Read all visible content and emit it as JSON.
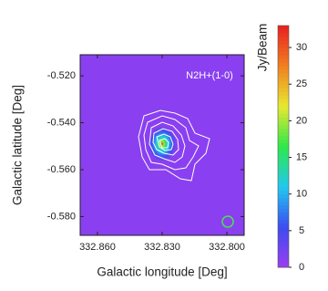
{
  "chart_data": {
    "type": "heatmap",
    "annotation": "N2H+(1-0)",
    "xlabel": "Galactic longitude [Deg]",
    "ylabel": "Galactic latitude [Deg]",
    "colorbar_label": "Jy/Beam",
    "xlim": [
      332.868,
      332.792
    ],
    "ylim": [
      -0.588,
      -0.511
    ],
    "xticks": [
      {
        "value": 332.86,
        "label": "332.860"
      },
      {
        "value": 332.83,
        "label": "332.830"
      },
      {
        "value": 332.8,
        "label": "332.800"
      }
    ],
    "yticks": [
      {
        "value": -0.52,
        "label": "-0.520"
      },
      {
        "value": -0.54,
        "label": "-0.540"
      },
      {
        "value": -0.56,
        "label": "-0.560"
      },
      {
        "value": -0.58,
        "label": "-0.580"
      }
    ],
    "clim": [
      0,
      33
    ],
    "cticks": [
      0,
      5,
      10,
      15,
      20,
      25,
      30
    ],
    "colormap": [
      "#9b3df0",
      "#3c4cf0",
      "#22c8f0",
      "#2ee84a",
      "#e8e830",
      "#f08020",
      "#e82020"
    ],
    "background": 1,
    "peak": {
      "x": 332.83,
      "y": -0.549,
      "value": 32
    }
  }
}
